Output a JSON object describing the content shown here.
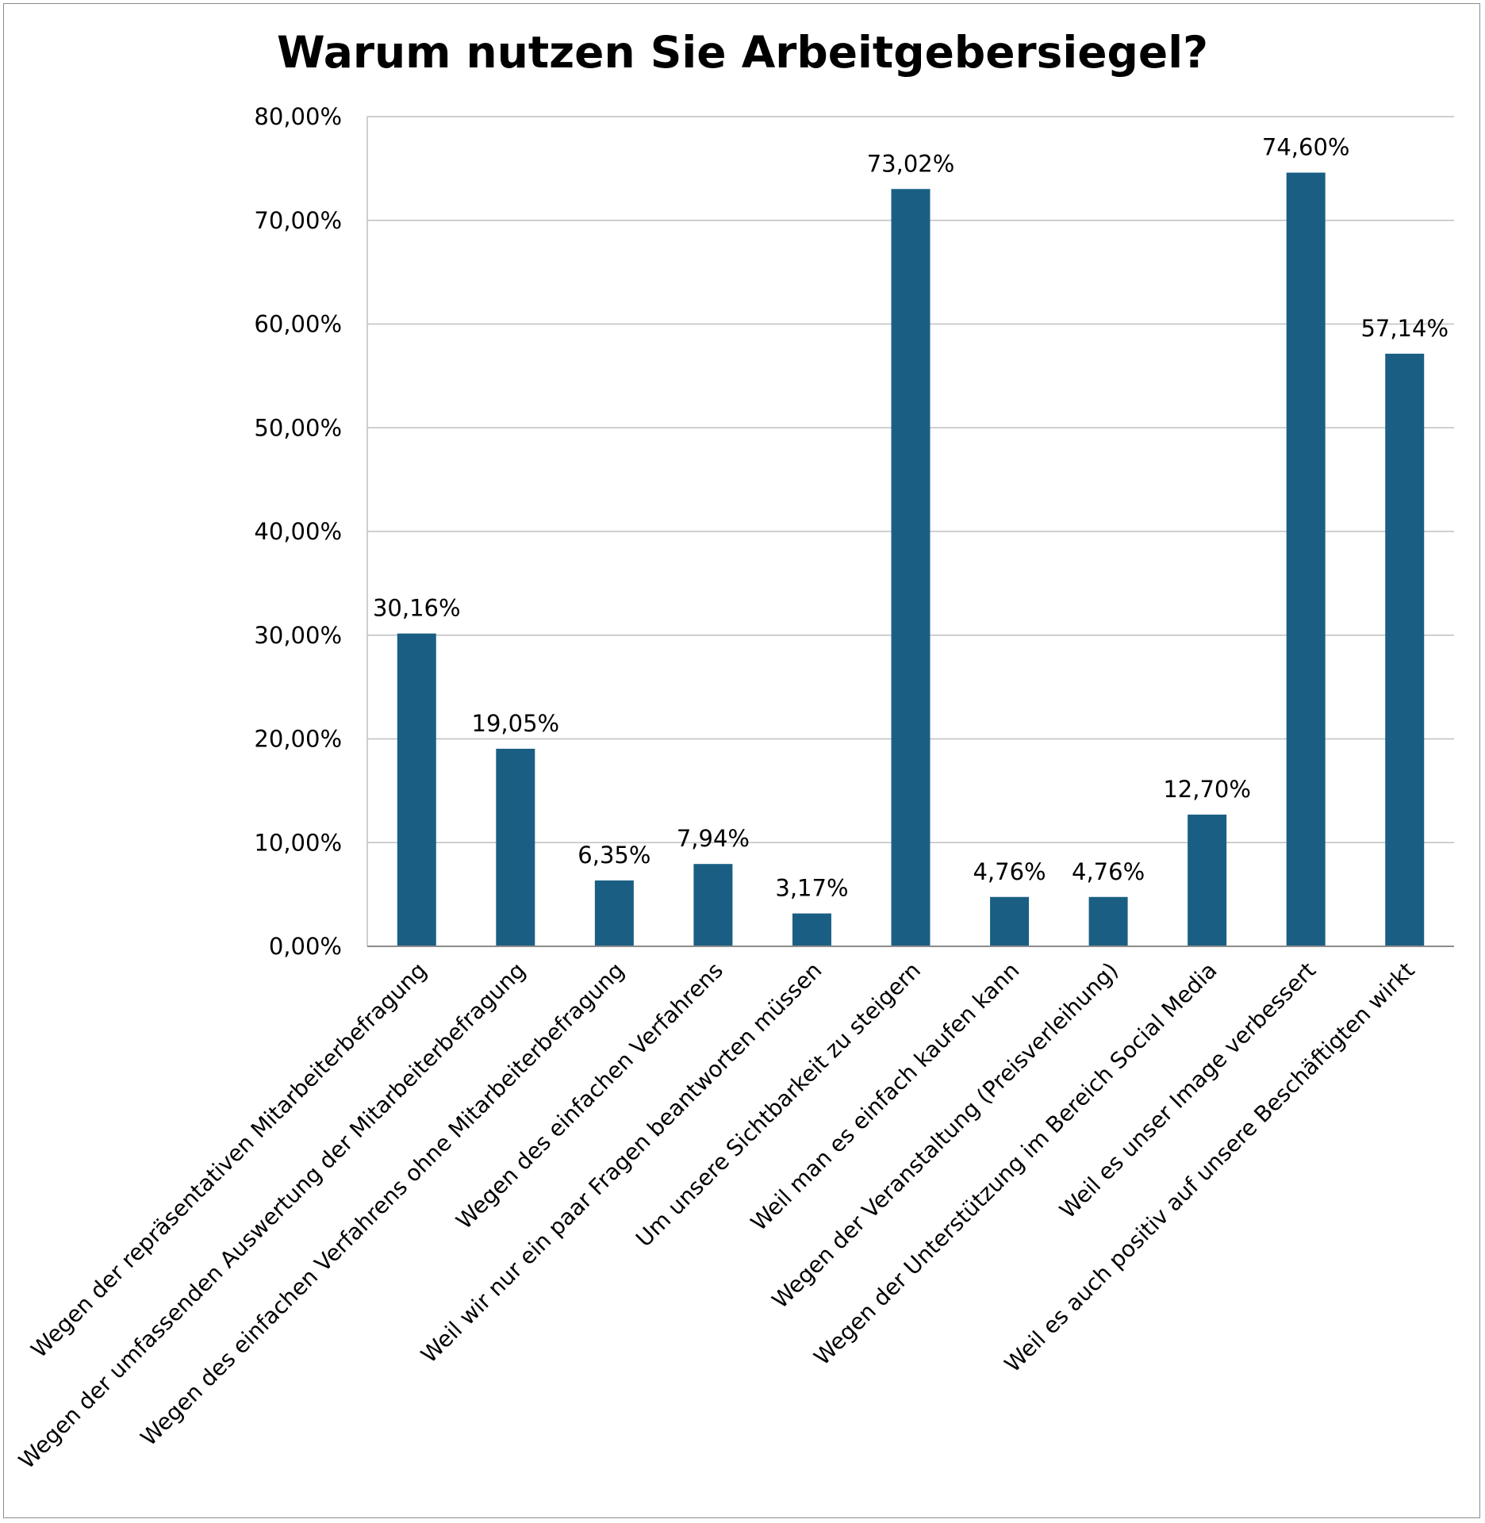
{
  "chart_data": {
    "type": "bar",
    "title": "Warum nutzen Sie Arbeitgebersiegel?",
    "categories": [
      "Wegen der repräsentativen Mitarbeiterbefragung",
      "Wegen der umfassenden Auswertung der Mitarbeiterbefragung",
      "Wegen des einfachen Verfahrens ohne Mitarbeiterbefragung",
      "Wegen des einfachen Verfahrens",
      "Weil wir nur ein paar Fragen beantworten müssen",
      "Um unsere Sichtbarkeit zu steigern",
      "Weil man es einfach kaufen kann",
      "Wegen der Veranstaltung (Preisverleihung)",
      "Wegen der Unterstützung im Bereich Social Media",
      "Weil es unser Image verbessert",
      "Weil es auch positiv auf unsere Beschäftigten wirkt"
    ],
    "values": [
      30.16,
      19.05,
      6.35,
      7.94,
      3.17,
      73.02,
      4.76,
      4.76,
      12.7,
      74.6,
      57.14
    ],
    "data_labels": [
      "30,16%",
      "19,05%",
      "6,35%",
      "7,94%",
      "3,17%",
      "73,02%",
      "4,76%",
      "4,76%",
      "12,70%",
      "74,60%",
      "57,14%"
    ],
    "y_ticks": [
      0,
      10,
      20,
      30,
      40,
      50,
      60,
      70,
      80
    ],
    "y_tick_labels": [
      "0,00%",
      "10,00%",
      "20,00%",
      "30,00%",
      "40,00%",
      "50,00%",
      "60,00%",
      "70,00%",
      "80,00%"
    ],
    "ylim": [
      0,
      80
    ],
    "xlabel": "",
    "ylabel": "",
    "grid": true,
    "legend": "none",
    "bar_color": "#1a5f83",
    "gridline_color": "#bfbfbf",
    "axis_color": "#8c8c8c"
  }
}
